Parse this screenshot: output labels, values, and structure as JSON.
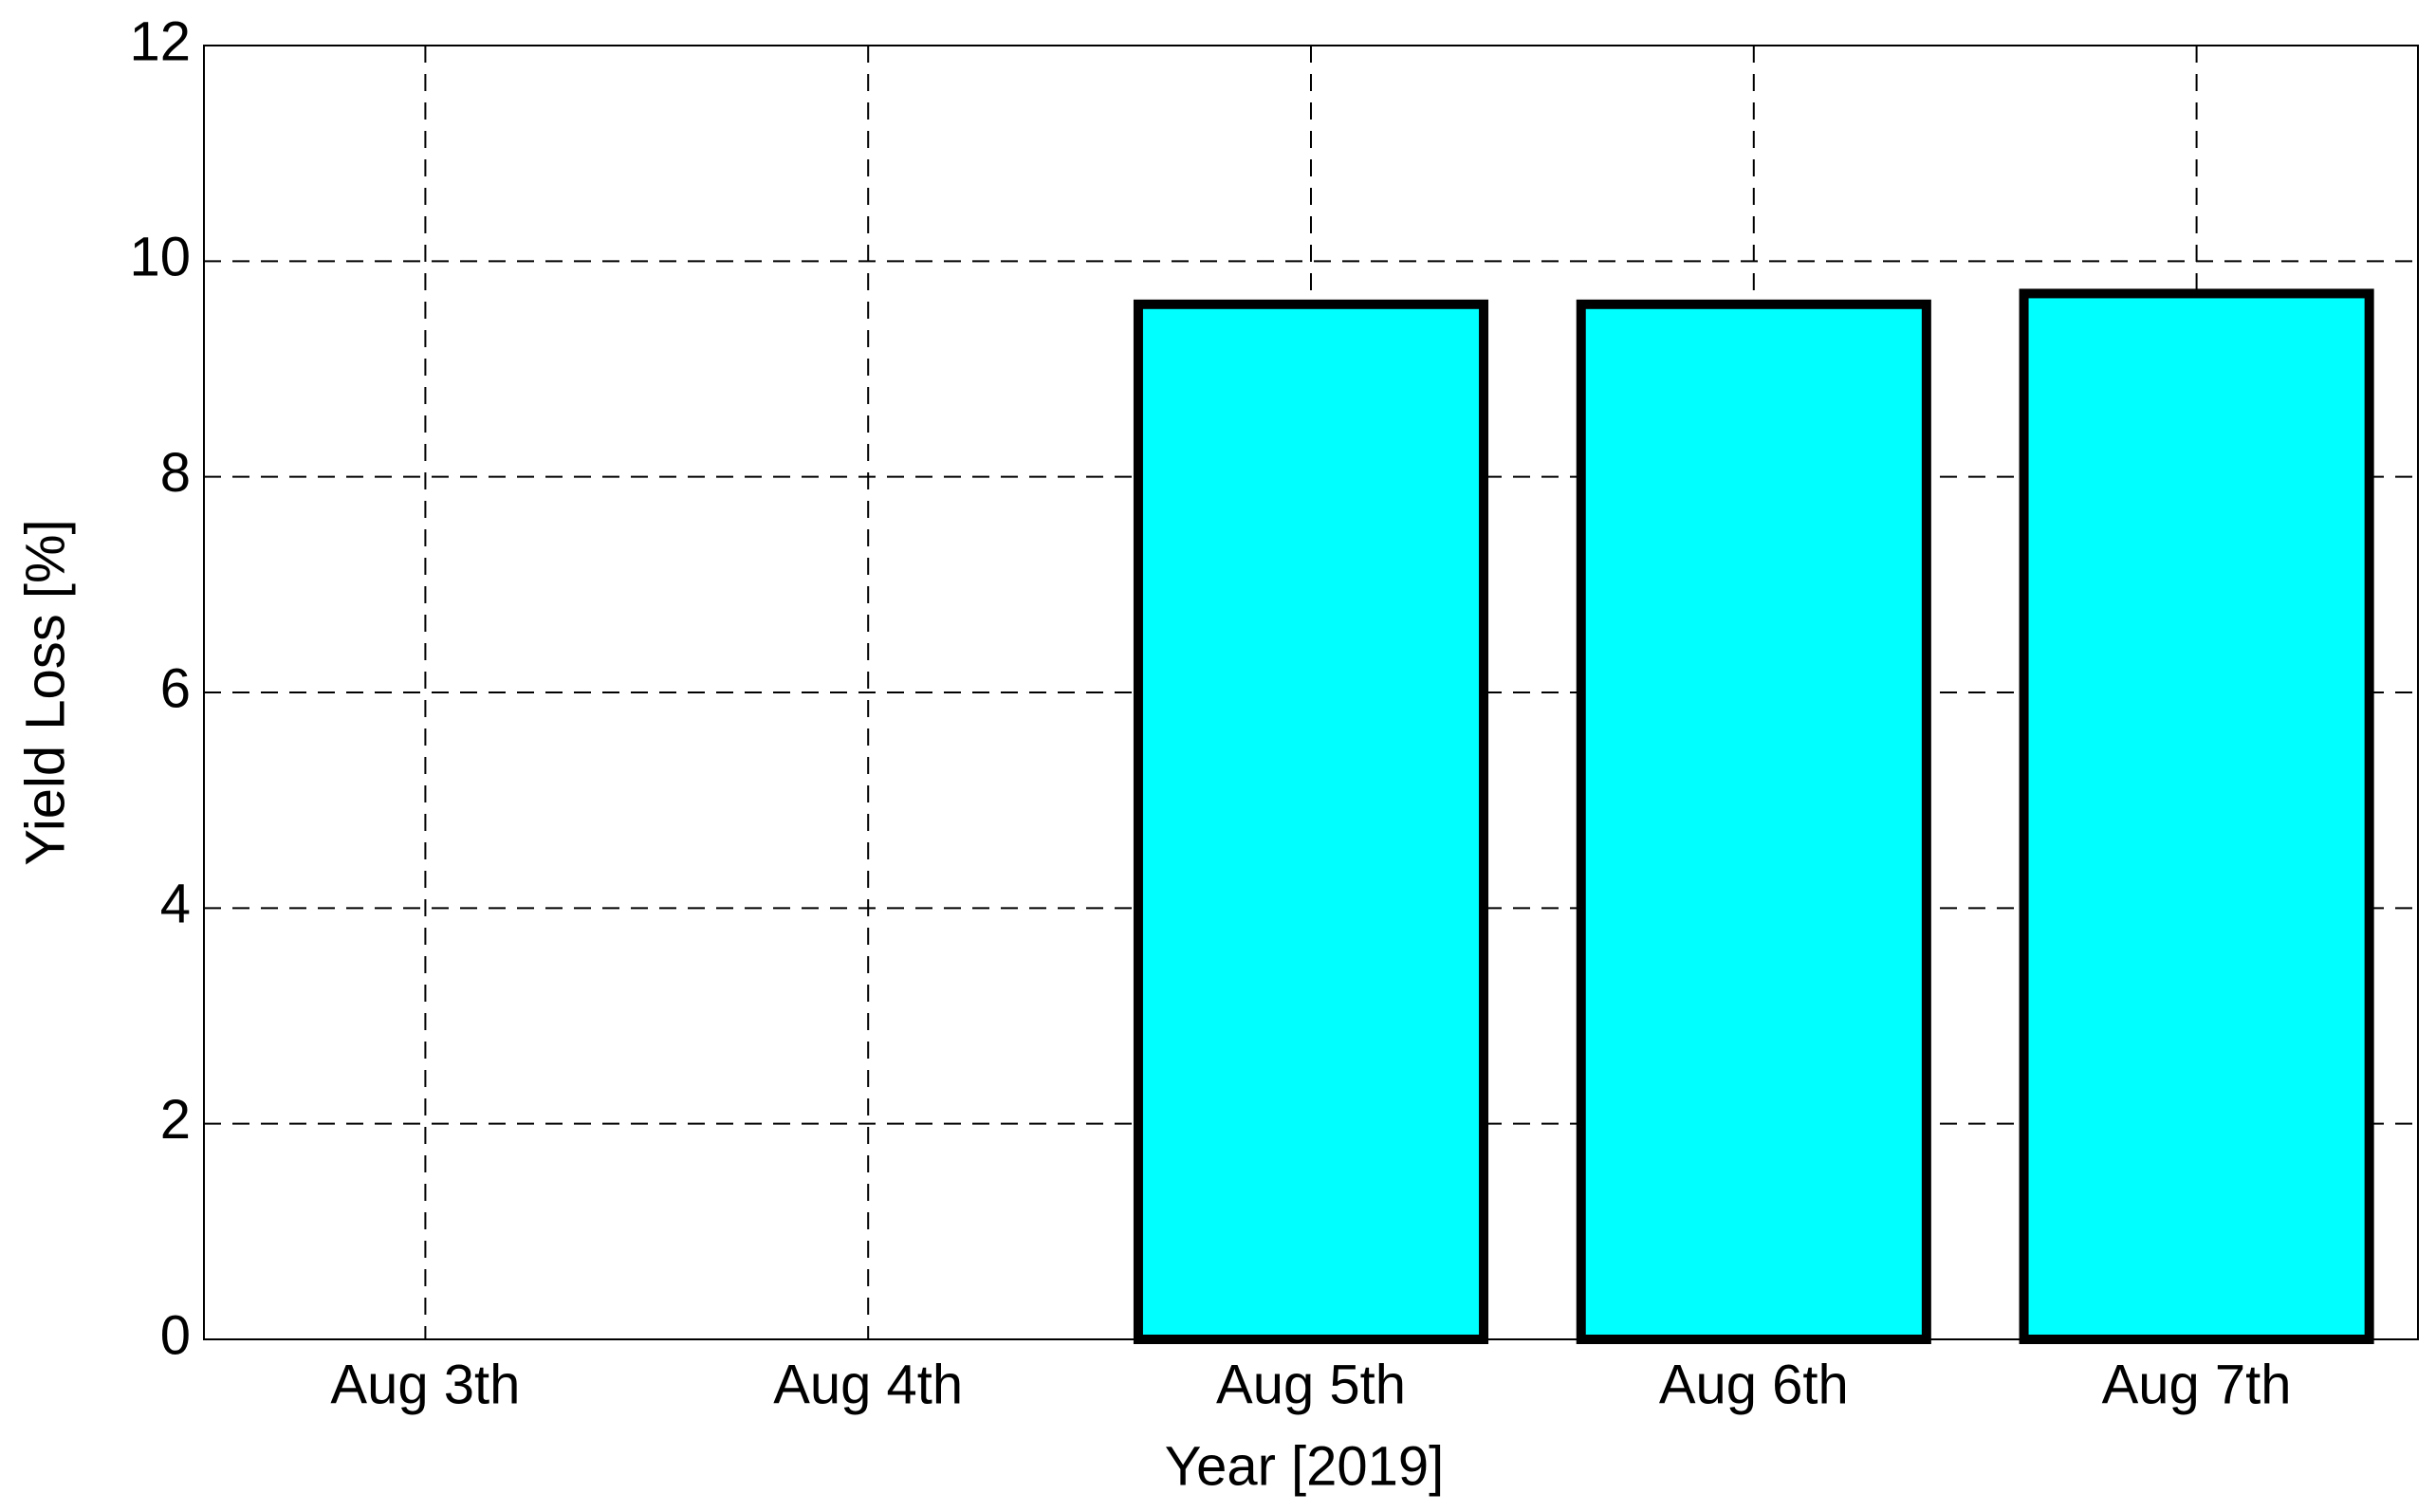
{
  "chart_data": {
    "type": "bar",
    "xlabel": "Year [2019]",
    "ylabel": "Yield Loss [%]",
    "categories": [
      "Aug 3th",
      "Aug 4th",
      "Aug 5th",
      "Aug 6th",
      "Aug 7th"
    ],
    "values": [
      0,
      0,
      9.6,
      9.6,
      9.7
    ],
    "color": "#00ffff",
    "ylim": [
      0,
      12
    ],
    "yticks": [
      0,
      2,
      4,
      6,
      8,
      10,
      12
    ],
    "grid": true
  }
}
